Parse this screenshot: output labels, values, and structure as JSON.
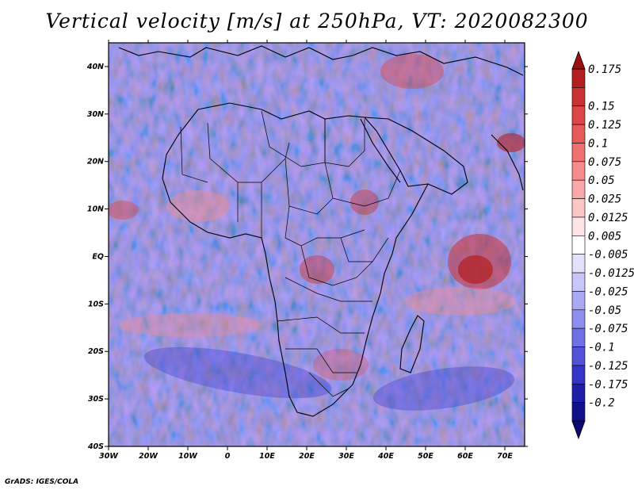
{
  "chart_data": {
    "type": "heatmap",
    "title": "Vertical velocity [m/s] at 250hPa, VT: 2020082300",
    "x_ticks": [
      "30W",
      "20W",
      "10W",
      "0",
      "10E",
      "20E",
      "30E",
      "40E",
      "50E",
      "60E",
      "70E"
    ],
    "x_range": [
      -30,
      75
    ],
    "y_ticks": [
      "40S",
      "30S",
      "20S",
      "10S",
      "EQ",
      "10N",
      "20N",
      "30N",
      "40N"
    ],
    "y_range": [
      -40,
      45
    ],
    "colorbar": {
      "labels": [
        "0.175",
        "0.15",
        "0.125",
        "0.1",
        "0.075",
        "0.05",
        "0.025",
        "0.0125",
        "0.005",
        "-0.005",
        "-0.0125",
        "-0.025",
        "-0.05",
        "-0.075",
        "-0.1",
        "-0.125",
        "-0.175",
        "-0.2"
      ],
      "colors": [
        "#b41e1e",
        "#c83232",
        "#dc4646",
        "#e65a5a",
        "#ee7070",
        "#f48c8c",
        "#f8a8a8",
        "#fcc6c6",
        "#fee4e4",
        "#ffffff",
        "#e2e2fc",
        "#c6c6f8",
        "#aaaaf4",
        "#8e8eee",
        "#7070e6",
        "#5252da",
        "#3434c8",
        "#1e1ea8",
        "#10108a"
      ],
      "extend": "both"
    }
  },
  "credit": "GrADS: IGES/COLA"
}
